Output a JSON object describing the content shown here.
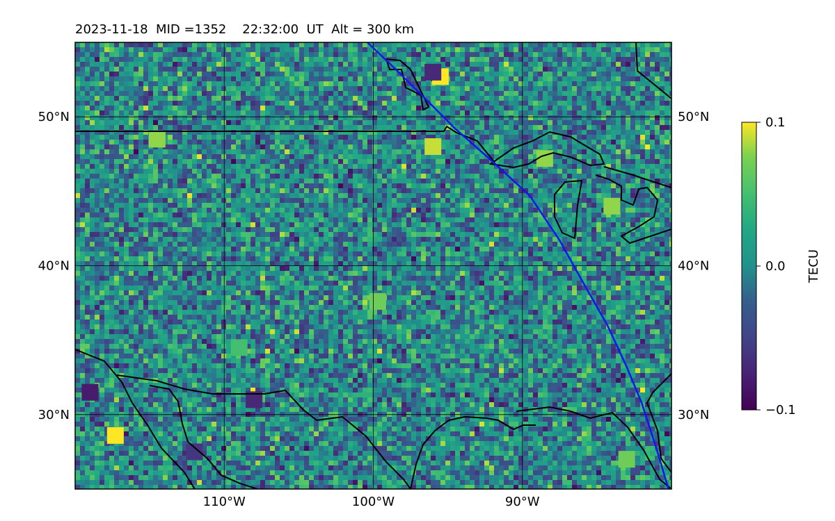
{
  "chart_data": {
    "type": "heatmap",
    "title": "2023-11-18  MID =1352    22:32:00  UT  Alt = 300 km",
    "map": {
      "lon_range": [
        -120,
        -80
      ],
      "lat_range": [
        25,
        55
      ],
      "lon_ticks": [
        {
          "value": -110,
          "label": "110°W"
        },
        {
          "value": -100,
          "label": "100°W"
        },
        {
          "value": -90,
          "label": "90°W"
        }
      ],
      "lat_ticks": [
        {
          "value": 30,
          "label": "30°N"
        },
        {
          "value": 40,
          "label": "40°N"
        },
        {
          "value": 50,
          "label": "50°N"
        }
      ],
      "grid": true,
      "colormap": "viridis",
      "track_color": "#1515ee",
      "track": [
        [
          -100.4,
          55.0
        ],
        [
          -98.5,
          53.2
        ],
        [
          -96.5,
          51.2
        ],
        [
          -94.5,
          49.2
        ],
        [
          -92.0,
          47.0
        ],
        [
          -89.5,
          44.7
        ],
        [
          -87.5,
          41.7
        ],
        [
          -86.0,
          39.0
        ],
        [
          -84.3,
          36.0
        ],
        [
          -83.0,
          33.2
        ],
        [
          -82.0,
          30.8
        ],
        [
          -81.0,
          27.7
        ],
        [
          -80.2,
          25.0
        ]
      ],
      "hotspots": [
        {
          "lon": -95.5,
          "lat": 52.7,
          "value": 0.1
        },
        {
          "lon": -117.3,
          "lat": 28.6,
          "value": 0.1
        },
        {
          "lon": -99.7,
          "lat": 37.6,
          "value": 0.07
        },
        {
          "lon": -114.5,
          "lat": 48.5,
          "value": 0.08
        },
        {
          "lon": -84.0,
          "lat": 44.0,
          "value": 0.08
        },
        {
          "lon": -83.0,
          "lat": 27.0,
          "value": 0.07
        },
        {
          "lon": -88.5,
          "lat": 47.2,
          "value": 0.08
        },
        {
          "lon": -96.0,
          "lat": 48.0,
          "value": 0.09
        },
        {
          "lon": -109.0,
          "lat": 34.5,
          "value": 0.05
        },
        {
          "lon": -96.0,
          "lat": 53.0,
          "value": -0.07
        },
        {
          "lon": -108.0,
          "lat": 31.0,
          "value": -0.07
        },
        {
          "lon": -119.0,
          "lat": 31.5,
          "value": -0.08
        },
        {
          "lon": -112.0,
          "lat": 27.5,
          "value": -0.06
        }
      ]
    },
    "colorbar": {
      "label": "TECU",
      "range": [
        -0.1,
        0.1
      ],
      "ticks": [
        {
          "value": 0.1,
          "label": "0.1"
        },
        {
          "value": 0.0,
          "label": "0.0"
        },
        {
          "value": -0.1,
          "label": "−0.1"
        }
      ]
    }
  }
}
